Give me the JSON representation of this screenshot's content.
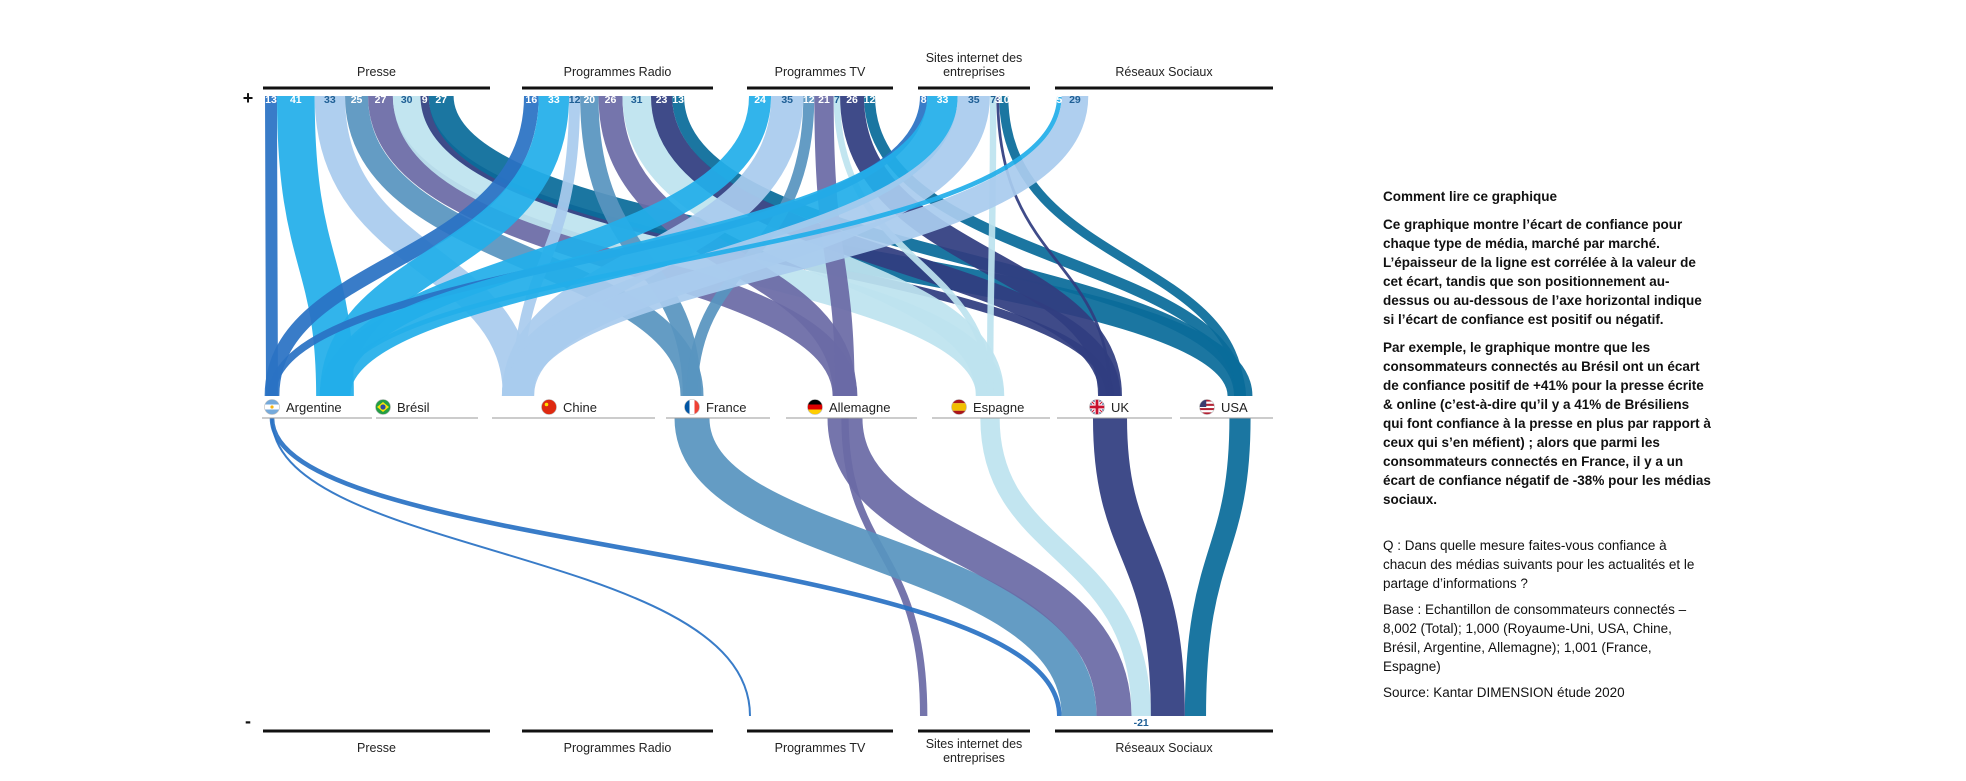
{
  "chart_data": {
    "type": "sankey",
    "title": "",
    "sign_labels": {
      "positive": "+",
      "negative": "-"
    },
    "media": [
      "Presse",
      "Programmes Radio",
      "Programmes TV",
      "Sites internet des entreprises",
      "Réseaux Sociaux"
    ],
    "countries": [
      "Argentine",
      "Brésil",
      "Chine",
      "France",
      "Allemagne",
      "Espagne",
      "UK",
      "USA"
    ],
    "series_colors": {
      "Argentine": "#2a72c4",
      "Brésil": "#22aeea",
      "Chine": "#a9cbee",
      "France": "#5895bf",
      "Allemagne": "#6a6aa6",
      "Espagne": "#bde3ef",
      "UK": "#303d80",
      "USA": "#0a6c9a"
    },
    "positive_gaps": [
      {
        "media": "Presse",
        "values": [
          {
            "country": "Argentine",
            "value": 13
          },
          {
            "country": "Brésil",
            "value": 41
          },
          {
            "country": "Chine",
            "value": 33
          },
          {
            "country": "France",
            "value": 25
          },
          {
            "country": "Allemagne",
            "value": 27
          },
          {
            "country": "Espagne",
            "value": 30
          },
          {
            "country": "UK",
            "value": 9
          },
          {
            "country": "USA",
            "value": 27
          }
        ]
      },
      {
        "media": "Programmes Radio",
        "values": [
          {
            "country": "Argentine",
            "value": 16
          },
          {
            "country": "Brésil",
            "value": 33
          },
          {
            "country": "Chine",
            "value": 12
          },
          {
            "country": "France",
            "value": 20
          },
          {
            "country": "Allemagne",
            "value": 26
          },
          {
            "country": "Espagne",
            "value": 31
          },
          {
            "country": "UK",
            "value": 23
          },
          {
            "country": "USA",
            "value": 13
          }
        ]
      },
      {
        "media": "Programmes TV",
        "values": [
          {
            "country": "Brésil",
            "value": 24
          },
          {
            "country": "Chine",
            "value": 35
          },
          {
            "country": "France",
            "value": 12
          },
          {
            "country": "Allemagne",
            "value": 21
          },
          {
            "country": "Espagne",
            "value": 7
          },
          {
            "country": "UK",
            "value": 26
          },
          {
            "country": "USA",
            "value": 12
          }
        ]
      },
      {
        "media": "Sites internet des entreprises",
        "values": [
          {
            "country": "Argentine",
            "value": 8
          },
          {
            "country": "Brésil",
            "value": 33
          },
          {
            "country": "Chine",
            "value": 35
          },
          {
            "country": "Espagne",
            "value": 7
          },
          {
            "country": "UK",
            "value": 3
          },
          {
            "country": "USA",
            "value": 10
          }
        ]
      },
      {
        "media": "Réseaux Sociaux",
        "values": [
          {
            "country": "Brésil",
            "value": 5
          },
          {
            "country": "Chine",
            "value": 29
          }
        ]
      }
    ],
    "negative_gaps": [
      {
        "media": "Programmes TV",
        "values": [
          {
            "country": "Argentine",
            "value": -2
          }
        ]
      },
      {
        "media": "Sites internet des entreprises",
        "values": [
          {
            "country": "Allemagne",
            "value": -8
          }
        ]
      },
      {
        "media": "Réseaux Sociaux",
        "values": [
          {
            "country": "Argentine",
            "value": -5
          },
          {
            "country": "France",
            "value": -38
          },
          {
            "country": "Allemagne",
            "value": -38
          },
          {
            "country": "Espagne",
            "value": -21
          },
          {
            "country": "UK",
            "value": -37
          },
          {
            "country": "USA",
            "value": -23
          }
        ]
      }
    ]
  },
  "sidebar": {
    "heading": "Comment lire ce graphique",
    "paragraph1": "Ce graphique montre l’écart de confiance pour chaque type de média, marché par marché. L’épaisseur de la ligne est corrélée à la valeur de cet écart, tandis que son positionnement au-dessus ou au-dessous de l’axe horizontal indique si l’écart de confiance est positif ou négatif.",
    "paragraph2": "Par exemple, le graphique montre que les consommateurs connectés au Brésil ont un écart de confiance positif de +41% pour la presse écrite & online (c’est-à-dire qu’il y a 41% de Brésiliens qui font confiance à la presse en plus par rapport à ceux qui s’en méfient) ; alors que parmi les consommateurs connectés en France, il y a un écart de confiance négatif de -38% pour les médias sociaux.",
    "question": "Q : Dans quelle mesure faites-vous confiance à chacun des médias suivants pour les actualités et le partage d’informations ?",
    "base": "Base : Echantillon de consommateurs connectés – 8,002 (Total); 1,000 (Royaume-Uni, USA, Chine, Brésil, Argentine, Allemagne); 1,001 (France, Espagne)",
    "source": "Source: Kantar DIMENSION étude 2020"
  }
}
